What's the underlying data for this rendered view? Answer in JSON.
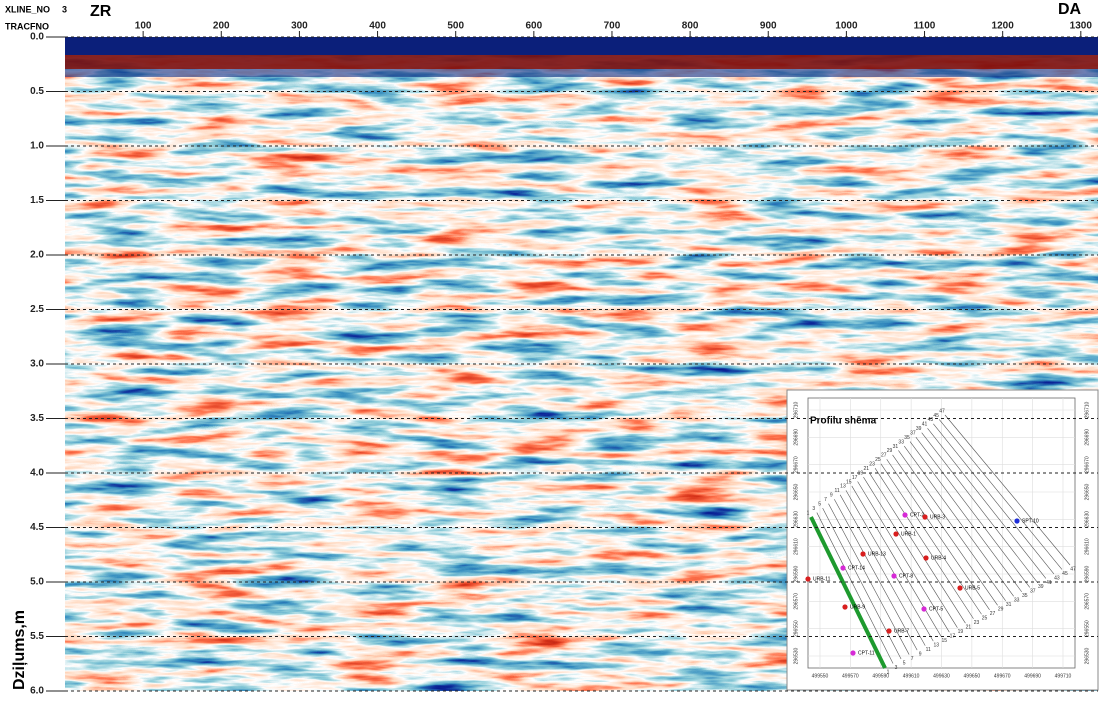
{
  "chart_data": {
    "type": "seismic",
    "header_labels": [
      "XLINE_NO",
      "TRACFNO"
    ],
    "xline_no": 3,
    "left_label": "ZR",
    "right_label": "DA",
    "ylabel": "Dziļums,m",
    "xlim": [
      0,
      1322
    ],
    "xticks": [
      100,
      200,
      300,
      400,
      500,
      600,
      700,
      800,
      900,
      1000,
      1100,
      1200,
      1300
    ],
    "ylim": [
      0,
      6
    ],
    "yticks": [
      {
        "value": 0,
        "label": "0.0"
      },
      0.5,
      {
        "value": 1,
        "label": "1.0"
      },
      1.5,
      {
        "value": 2,
        "label": "2.0"
      },
      2.5,
      {
        "value": 3,
        "label": "3.0"
      },
      3.5,
      {
        "value": 4,
        "label": "4.0"
      },
      4.5,
      {
        "value": 5,
        "label": "5.0"
      },
      5.5,
      {
        "value": 6,
        "label": "6.0"
      }
    ],
    "grid": true,
    "inset": {
      "title": "Profilu shēma",
      "x_labels": [
        "499550",
        "499570",
        "499590",
        "499610",
        "499630",
        "499650",
        "499670",
        "499690",
        "499710"
      ],
      "y_labels": [
        "296710",
        "296690",
        "296670",
        "296650",
        "296630",
        "296610",
        "296590",
        "296570",
        "296550",
        "296530"
      ],
      "profile_numbers": [
        1,
        3,
        5,
        7,
        9,
        11,
        13,
        15,
        17,
        19,
        21,
        23,
        25,
        27,
        29,
        31,
        33,
        35,
        37,
        39,
        41,
        43,
        45,
        47
      ],
      "points": [
        {
          "label": "CPT-2",
          "color": "#d62ad6"
        },
        {
          "label": "URB-3",
          "color": "#d81e1e"
        },
        {
          "label": "SPT-10",
          "color": "#1e2ed8"
        },
        {
          "label": "URB-1",
          "color": "#d81e1e"
        },
        {
          "label": "URB-13",
          "color": "#d81e1e"
        },
        {
          "label": "CPT-14",
          "color": "#d62ad6"
        },
        {
          "label": "URB-4",
          "color": "#d81e1e"
        },
        {
          "label": "URB-11",
          "color": "#d81e1e"
        },
        {
          "label": "CPT-8",
          "color": "#d62ad6"
        },
        {
          "label": "URB-5",
          "color": "#d81e1e"
        },
        {
          "label": "URB-9",
          "color": "#d81e1e"
        },
        {
          "label": "CPT-5",
          "color": "#d62ad6"
        },
        {
          "label": "URB-7",
          "color": "#d81e1e"
        },
        {
          "label": "CPT-11",
          "color": "#d62ad6"
        }
      ]
    }
  }
}
